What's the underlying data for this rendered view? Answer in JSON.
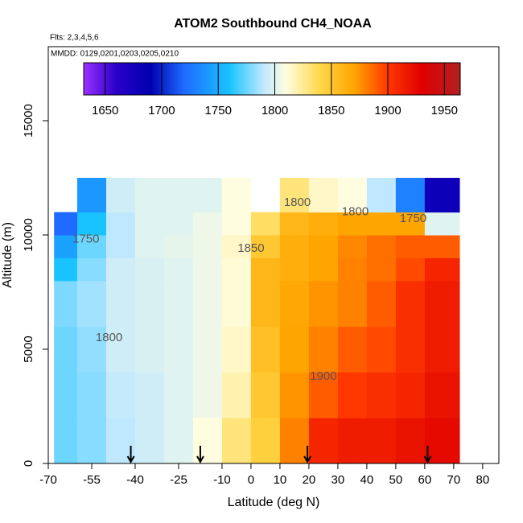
{
  "chart_data": {
    "type": "heatmap",
    "title": "ATOM2 Southbound CH4_NOAA",
    "subtitle": "Flts: 2,3,4,5,6",
    "annotation": "MMDD: 0129,0201,0203,0205,0210",
    "xlabel": "Latitude (deg N)",
    "ylabel": "Altitude (m)",
    "xlim": [
      -70,
      85.6
    ],
    "ylim": [
      0,
      18240
    ],
    "xticks": [
      -70,
      -55,
      -40,
      -25,
      -10,
      0,
      10,
      20,
      30,
      40,
      50,
      60,
      70,
      80
    ],
    "yticks": [
      0,
      5000,
      10000,
      15000
    ],
    "x_edges": [
      -68,
      -60,
      -50,
      -40,
      -30,
      -20,
      -10,
      0,
      10,
      20,
      30,
      40,
      50,
      60,
      72
    ],
    "y_edges": [
      0,
      2000,
      4000,
      6000,
      8000,
      9000,
      10000,
      11000,
      12500
    ],
    "values": [
      [
        1775,
        1780,
        1790,
        1795,
        1800,
        1810,
        1830,
        1845,
        1880,
        1910,
        1915,
        1915,
        1920,
        1925
      ],
      [
        1775,
        1780,
        1792,
        1795,
        1800,
        1805,
        1820,
        1850,
        1875,
        1890,
        1900,
        1905,
        1910,
        1920
      ],
      [
        1775,
        1782,
        1795,
        1798,
        1800,
        1805,
        1815,
        1855,
        1870,
        1880,
        1890,
        1895,
        1905,
        1915
      ],
      [
        1778,
        1785,
        1795,
        1798,
        1800,
        1805,
        1812,
        1860,
        1868,
        1875,
        1880,
        1890,
        1905,
        1915
      ],
      [
        1760,
        1780,
        1795,
        1798,
        1800,
        1805,
        1812,
        1860,
        1865,
        1870,
        1880,
        1885,
        1895,
        1910
      ],
      [
        1745,
        1775,
        1790,
        1800,
        1802,
        1805,
        1815,
        1850,
        1865,
        1870,
        1878,
        1885,
        1890,
        1890
      ],
      [
        1720,
        1760,
        1790,
        1800,
        1800,
        1805,
        1810,
        1835,
        1860,
        1865,
        1870,
        1870,
        1870,
        1800
      ],
      [
        null,
        1740,
        1795,
        1800,
        1800,
        1800,
        1810,
        null,
        1830,
        1815,
        1810,
        1790,
        1730,
        1680
      ]
    ],
    "colorbar_lim": [
      1631,
      1964
    ],
    "colorbar_ticks": [
      1650,
      1700,
      1750,
      1800,
      1850,
      1900,
      1950
    ],
    "color_stops": [
      [
        1631,
        "#9b30ff"
      ],
      [
        1660,
        "#2a00c8"
      ],
      [
        1690,
        "#0000b0"
      ],
      [
        1720,
        "#1f6bff"
      ],
      [
        1760,
        "#19c3ff"
      ],
      [
        1790,
        "#bfe8ff"
      ],
      [
        1810,
        "#fffde0"
      ],
      [
        1840,
        "#ffd84a"
      ],
      [
        1870,
        "#ffa500"
      ],
      [
        1900,
        "#ff3800"
      ],
      [
        1930,
        "#e00000"
      ],
      [
        1964,
        "#b22020"
      ]
    ],
    "contour_labels": [
      {
        "level": 1800,
        "x": -49,
        "y": 5500
      },
      {
        "level": 1750,
        "x": -57,
        "y": 9800
      },
      {
        "level": 1850,
        "x": 0,
        "y": 9400
      },
      {
        "level": 1800,
        "x": 16,
        "y": 11400
      },
      {
        "level": 1800,
        "x": 36,
        "y": 11000
      },
      {
        "level": 1750,
        "x": 56,
        "y": 10700
      },
      {
        "level": 1900,
        "x": 25,
        "y": 3800
      }
    ],
    "flight_markers": [
      -41.5,
      -17.5,
      19.5,
      61
    ]
  }
}
